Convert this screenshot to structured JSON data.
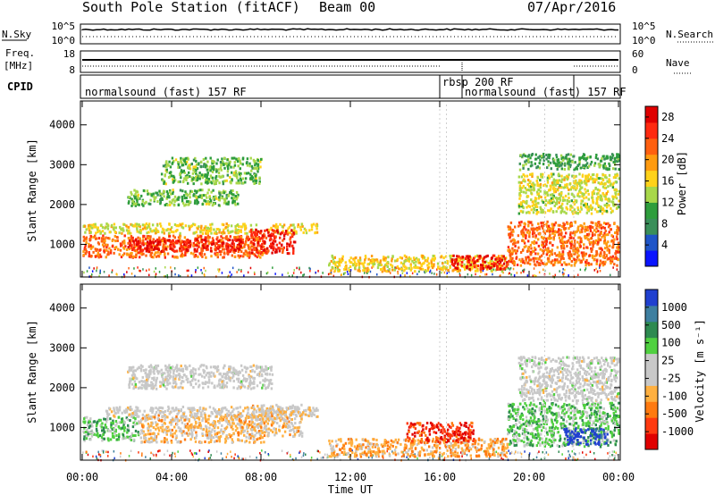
{
  "header": {
    "station": "South Pole Station (fitACF)",
    "beam": "Beam 00",
    "date": "07/Apr/2016"
  },
  "summary_panel": {
    "left_label_top": "N.Sky",
    "left_ticks": [
      "10^5",
      "10^0"
    ],
    "right_ticks": [
      "10^5",
      "10^0"
    ],
    "right_label": "N.Search"
  },
  "freq_panel": {
    "label_line1": "Freq.",
    "label_line2": "[MHz]",
    "left_ticks": [
      "18",
      "8"
    ],
    "right_ticks": [
      "60",
      "0"
    ],
    "right_label": "Nave"
  },
  "cpid_panel": {
    "label": "CPID",
    "segments": [
      {
        "text": "normalsound (fast) 157 RF",
        "start_h": 0,
        "end_h": 16
      },
      {
        "text": "rbsp 200 RF",
        "start_h": 16,
        "end_h": 17
      },
      {
        "text": "normalsound (fast) 157 RF",
        "start_h": 17,
        "end_h": 22
      }
    ]
  },
  "x_axis": {
    "label": "Time UT",
    "ticks": [
      "00:00",
      "04:00",
      "08:00",
      "12:00",
      "16:00",
      "20:00",
      "00:00"
    ]
  },
  "colors": {
    "power_scale": [
      "#0a14ff",
      "#1f55c8",
      "#3a8f5a",
      "#2e9d3c",
      "#a8d84a",
      "#ffd21a",
      "#ff9b10",
      "#ff6010",
      "#ff2a10",
      "#e00000"
    ],
    "velocity_scale": [
      "#e00000",
      "#ff3a10",
      "#ff7a10",
      "#ffb040",
      "#c8c8c8",
      "#c8c8c8",
      "#50d040",
      "#2e8a50",
      "#3e7fa0",
      "#2040d0"
    ]
  },
  "chart_data": [
    {
      "type": "heatmap",
      "name_panel": "power",
      "ylabel": "Slant Range [km]",
      "yticks": [
        "1000",
        "2000",
        "3000",
        "4000"
      ],
      "ylim": [
        180,
        4600
      ],
      "xlim_hours": [
        0,
        24
      ],
      "colorbar": {
        "label": "Power [dB]",
        "ticks": [
          "4",
          "8",
          "12",
          "16",
          "20",
          "24",
          "28"
        ],
        "range": [
          0,
          30
        ]
      },
      "regions": [
        {
          "t0": 0.0,
          "t1": 8.2,
          "r0": 700,
          "r1": 1250,
          "value": 22
        },
        {
          "t0": 2.0,
          "t1": 7.2,
          "r0": 850,
          "r1": 1150,
          "value": 27
        },
        {
          "t0": 0.0,
          "t1": 10.5,
          "r0": 1300,
          "r1": 1550,
          "value": 16
        },
        {
          "t0": 2.0,
          "t1": 7.0,
          "r0": 2000,
          "r1": 2400,
          "value": 12
        },
        {
          "t0": 3.5,
          "t1": 8.0,
          "r0": 2550,
          "r1": 3200,
          "value": 12
        },
        {
          "t0": 7.5,
          "t1": 9.5,
          "r0": 800,
          "r1": 1400,
          "value": 26
        },
        {
          "t0": 11.0,
          "t1": 19.0,
          "r0": 350,
          "r1": 750,
          "value": 17
        },
        {
          "t0": 16.5,
          "t1": 19.0,
          "r0": 400,
          "r1": 750,
          "value": 27
        },
        {
          "t0": 19.0,
          "t1": 24.0,
          "r0": 500,
          "r1": 1600,
          "value": 22
        },
        {
          "t0": 19.5,
          "t1": 24.0,
          "r0": 1800,
          "r1": 2800,
          "value": 15
        },
        {
          "t0": 19.5,
          "t1": 24.0,
          "r0": 2900,
          "r1": 3300,
          "value": 10
        }
      ]
    },
    {
      "type": "heatmap",
      "name_panel": "velocity",
      "ylabel": "Slant Range [km]",
      "yticks": [
        "1000",
        "2000",
        "3000",
        "4000"
      ],
      "ylim": [
        180,
        4600
      ],
      "xlim_hours": [
        0,
        24
      ],
      "colorbar": {
        "label": "Velocity [m s⁻¹]",
        "ticks": [
          "1000",
          "500",
          "100",
          "25",
          "-25",
          "-100",
          "-500",
          "-1000"
        ],
        "range": [
          -1200,
          1200
        ]
      },
      "regions": [
        {
          "t0": 0.0,
          "t1": 2.5,
          "r0": 700,
          "r1": 1300,
          "value": 350
        },
        {
          "t0": 2.5,
          "t1": 8.2,
          "r0": 650,
          "r1": 1350,
          "value": -300
        },
        {
          "t0": 1.0,
          "t1": 10.5,
          "r0": 1300,
          "r1": 1550,
          "value": -60
        },
        {
          "t0": 2.0,
          "t1": 8.5,
          "r0": 2000,
          "r1": 2600,
          "value": 0
        },
        {
          "t0": 7.5,
          "t1": 9.8,
          "r0": 800,
          "r1": 1600,
          "value": -250
        },
        {
          "t0": 11.0,
          "t1": 19.0,
          "r0": 300,
          "r1": 750,
          "value": -400
        },
        {
          "t0": 14.5,
          "t1": 17.5,
          "r0": 650,
          "r1": 1150,
          "value": -900
        },
        {
          "t0": 19.0,
          "t1": 24.0,
          "r0": 550,
          "r1": 1650,
          "value": 350
        },
        {
          "t0": 21.5,
          "t1": 23.5,
          "r0": 600,
          "r1": 1000,
          "value": 1100
        },
        {
          "t0": 19.5,
          "t1": 24.0,
          "r0": 1700,
          "r1": 2800,
          "value": 10
        }
      ]
    }
  ]
}
